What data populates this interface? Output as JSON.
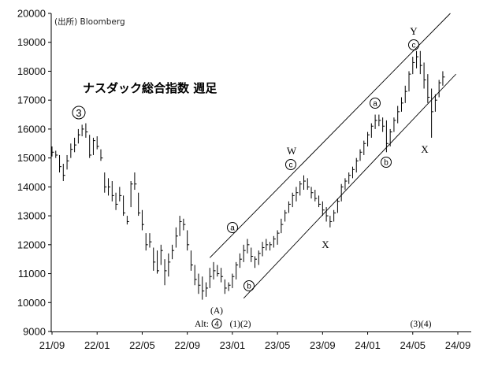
{
  "chart_data": {
    "type": "bar",
    "style": "ohlc-weekly",
    "title": "ナスダック総合指数 週足",
    "source": "(出所) Bloomberg",
    "ylim": [
      9000,
      20000
    ],
    "yticks": [
      "20000",
      "19000",
      "18000",
      "17000",
      "16000",
      "15000",
      "14000",
      "13000",
      "12000",
      "11000",
      "10000",
      "9000"
    ],
    "xticks": [
      "21/09",
      "22/01",
      "22/05",
      "22/09",
      "23/01",
      "23/05",
      "23/09",
      "24/01",
      "24/05",
      "24/09"
    ],
    "grid": false,
    "series": [
      {
        "values": [
          [
            0,
            15400,
            15050,
            15200
          ],
          [
            2,
            15250,
            15000,
            15100
          ],
          [
            4,
            15100,
            14500,
            14700
          ],
          [
            6,
            14800,
            14200,
            14400
          ],
          [
            8,
            15100,
            14600,
            14900
          ],
          [
            10,
            15500,
            15000,
            15300
          ],
          [
            12,
            15700,
            15200,
            15450
          ],
          [
            14,
            16000,
            15500,
            15800
          ],
          [
            16,
            16150,
            15750,
            16000
          ],
          [
            18,
            16200,
            15700,
            15900
          ],
          [
            20,
            15800,
            15000,
            15100
          ],
          [
            22,
            15700,
            15100,
            15600
          ],
          [
            24,
            15750,
            15300,
            15400
          ],
          [
            26,
            15300,
            14900,
            15000
          ],
          [
            28,
            14500,
            13800,
            14000
          ],
          [
            30,
            14300,
            13700,
            14000
          ],
          [
            32,
            14200,
            13500,
            13700
          ],
          [
            34,
            13800,
            13200,
            13400
          ],
          [
            36,
            14000,
            13500,
            13700
          ],
          [
            38,
            13700,
            13000,
            13100
          ],
          [
            40,
            13000,
            12700,
            12800
          ],
          [
            42,
            14200,
            13300,
            14100
          ],
          [
            44,
            14500,
            13900,
            14100
          ],
          [
            46,
            13800,
            13000,
            13100
          ],
          [
            48,
            13200,
            12500,
            12700
          ],
          [
            50,
            12400,
            11800,
            12000
          ],
          [
            52,
            12400,
            11900,
            12100
          ],
          [
            54,
            11900,
            11100,
            11400
          ],
          [
            56,
            11800,
            11000,
            11100
          ],
          [
            58,
            12000,
            11300,
            11800
          ],
          [
            60,
            11500,
            10600,
            11100
          ],
          [
            62,
            11700,
            10900,
            11400
          ],
          [
            64,
            12000,
            11500,
            11800
          ],
          [
            66,
            12600,
            11900,
            12300
          ],
          [
            68,
            13000,
            12300,
            12800
          ],
          [
            70,
            12900,
            12500,
            12700
          ],
          [
            72,
            12500,
            11800,
            12000
          ],
          [
            74,
            11800,
            11100,
            11300
          ],
          [
            76,
            11300,
            10600,
            10800
          ],
          [
            78,
            11000,
            10300,
            10600
          ],
          [
            80,
            10900,
            10100,
            10400
          ],
          [
            82,
            10700,
            10200,
            10500
          ],
          [
            84,
            11200,
            10500,
            10900
          ],
          [
            86,
            11400,
            10800,
            11100
          ],
          [
            88,
            11300,
            10900,
            11000
          ],
          [
            90,
            11200,
            10700,
            10900
          ],
          [
            92,
            10800,
            10300,
            10500
          ],
          [
            94,
            10700,
            10400,
            10600
          ],
          [
            96,
            11000,
            10500,
            10900
          ],
          [
            98,
            11400,
            10800,
            11300
          ],
          [
            100,
            11700,
            11200,
            11500
          ],
          [
            102,
            12000,
            11400,
            11800
          ],
          [
            104,
            12200,
            11700,
            12000
          ],
          [
            106,
            11900,
            11400,
            11600
          ],
          [
            108,
            11600,
            11200,
            11500
          ],
          [
            110,
            11800,
            11300,
            11700
          ],
          [
            112,
            12100,
            11600,
            11900
          ],
          [
            114,
            12200,
            11800,
            12000
          ],
          [
            116,
            12100,
            11800,
            12000
          ],
          [
            118,
            12300,
            11900,
            12200
          ],
          [
            120,
            12500,
            12000,
            12400
          ],
          [
            122,
            12900,
            12400,
            12700
          ],
          [
            124,
            13200,
            12800,
            13100
          ],
          [
            126,
            13500,
            13100,
            13400
          ],
          [
            128,
            13800,
            13300,
            13700
          ],
          [
            130,
            14000,
            13500,
            13800
          ],
          [
            132,
            14200,
            13700,
            14100
          ],
          [
            134,
            14400,
            13900,
            14200
          ],
          [
            136,
            14300,
            13900,
            14000
          ],
          [
            138,
            14000,
            13600,
            13800
          ],
          [
            140,
            13900,
            13500,
            13600
          ],
          [
            142,
            13700,
            13300,
            13400
          ],
          [
            144,
            13500,
            13000,
            13200
          ],
          [
            146,
            13300,
            12800,
            13000
          ],
          [
            148,
            13000,
            12600,
            12800
          ],
          [
            150,
            13200,
            12800,
            13100
          ],
          [
            152,
            13600,
            13100,
            13500
          ],
          [
            154,
            14100,
            13500,
            14000
          ],
          [
            156,
            14300,
            13900,
            14200
          ],
          [
            158,
            14500,
            14100,
            14400
          ],
          [
            160,
            14700,
            14300,
            14600
          ],
          [
            162,
            15000,
            14500,
            14900
          ],
          [
            164,
            15300,
            14900,
            15200
          ],
          [
            166,
            15600,
            15100,
            15500
          ],
          [
            168,
            15900,
            15400,
            15800
          ],
          [
            170,
            16200,
            15700,
            16100
          ],
          [
            172,
            16500,
            16000,
            16300
          ],
          [
            174,
            16500,
            16100,
            16300
          ],
          [
            176,
            16400,
            15900,
            16100
          ],
          [
            178,
            16300,
            15200,
            15500
          ],
          [
            180,
            16000,
            15400,
            15900
          ],
          [
            182,
            16400,
            15900,
            16300
          ],
          [
            184,
            16800,
            16200,
            16600
          ],
          [
            186,
            17100,
            16600,
            16900
          ],
          [
            188,
            17500,
            16900,
            17300
          ],
          [
            190,
            18000,
            17300,
            17900
          ],
          [
            192,
            18500,
            17900,
            18300
          ],
          [
            194,
            18700,
            18100,
            18500
          ],
          [
            196,
            18700,
            17900,
            18200
          ],
          [
            198,
            18300,
            17400,
            17700
          ],
          [
            200,
            17900,
            16900,
            17100
          ],
          [
            202,
            17400,
            15700,
            16600
          ],
          [
            204,
            17200,
            16600,
            17000
          ],
          [
            206,
            17700,
            17100,
            17600
          ],
          [
            208,
            18000,
            17500,
            17800
          ]
        ]
      }
    ],
    "channels": [
      {
        "x": [
          84,
          212
        ],
        "y": [
          11550,
          20000
        ]
      },
      {
        "x": [
          102,
          215
        ],
        "y": [
          10150,
          17900
        ]
      }
    ],
    "annotations": {
      "wave3": "3",
      "a1": "a",
      "b1": "b",
      "c1": "c",
      "a2": "a",
      "b2": "b",
      "c2": "c",
      "W": "W",
      "X1": "X",
      "X2": "X",
      "Y": "Y",
      "A": "(A)",
      "alt": "Alt:",
      "alt_num": "4",
      "w12": "(1)(2)",
      "w34": "(3)(4)"
    }
  }
}
